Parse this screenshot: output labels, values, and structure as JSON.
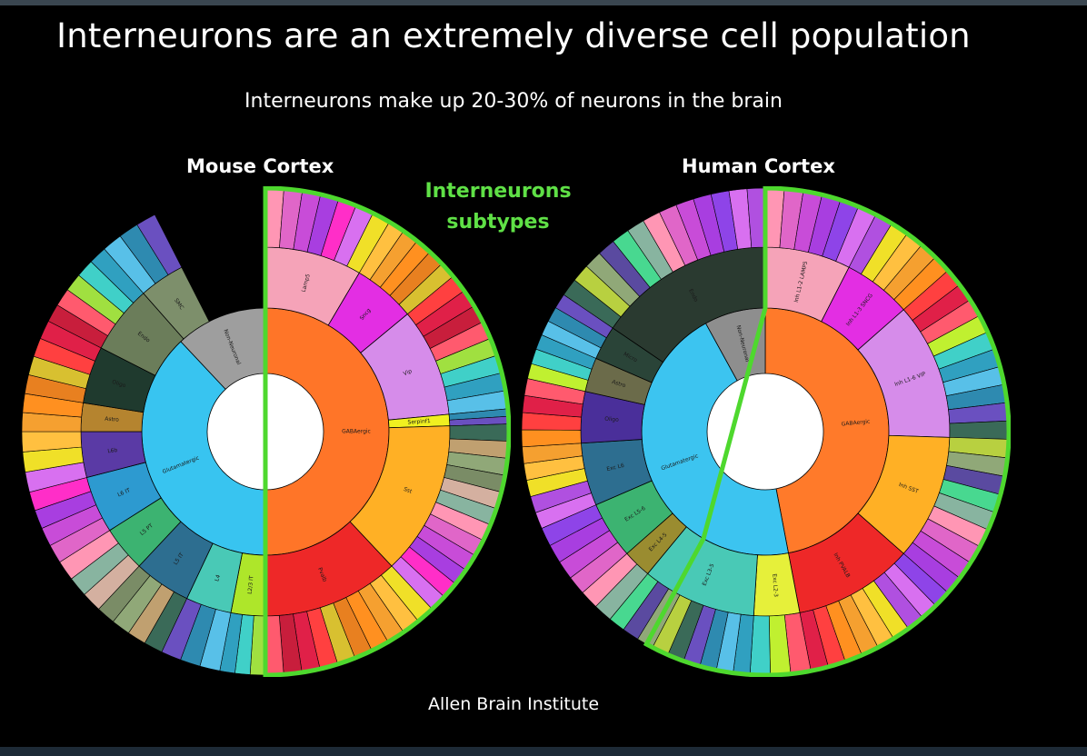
{
  "slide": {
    "title": "Interneurons are an extremely diverse cell population",
    "subtitle": "Interneurons make up 20-30% of neurons in the brain",
    "interneuron_label_line1": "Interneurons",
    "interneuron_label_line2": "subtypes",
    "credit": "Allen Brain Institute"
  },
  "colors": {
    "background": "#000000",
    "highlight_outline": "#4ed82e",
    "interneuron_label": "#5fe046"
  },
  "charts": [
    {
      "label": "Mouse Cortex",
      "rings": [
        [
          {
            "span": 50,
            "color": "#ff7528",
            "label": "GABAergic"
          },
          {
            "span": 38,
            "color": "#38c4f0",
            "label": "Glutamatergic"
          },
          {
            "span": 12,
            "color": "#9e9e9e",
            "label": "Non-Neuronal"
          }
        ],
        [
          {
            "span": 8.5,
            "color": "#f5a3b8",
            "label": "Lamp5"
          },
          {
            "span": 5.5,
            "color": "#e32ee3",
            "label": "Sncg"
          },
          {
            "span": 9.5,
            "color": "#d68cea",
            "label": "Vip"
          },
          {
            "span": 1.0,
            "color": "#f0f020",
            "label": "Serpinf1"
          },
          {
            "span": 13.5,
            "color": "#ffb025",
            "label": "Sst"
          },
          {
            "span": 12.0,
            "color": "#ee2828",
            "label": "Pvalb"
          },
          {
            "span": 3.0,
            "color": "#aee62a",
            "label": "L2/3 IT"
          },
          {
            "span": 4.0,
            "color": "#49c9b6",
            "label": "L4"
          },
          {
            "span": 5.0,
            "color": "#2d6e90",
            "label": "L5 IT"
          },
          {
            "span": 4.0,
            "color": "#3cb371",
            "label": "L5 PT"
          },
          {
            "span": 5.0,
            "color": "#2d9ad0",
            "label": "L6 IT"
          },
          {
            "span": 4.0,
            "color": "#5a3aa5",
            "label": "L6b"
          },
          {
            "span": 2.5,
            "color": "#b5842f",
            "label": "Astro"
          },
          {
            "span": 5.0,
            "color": "#1f3a2e",
            "label": "Oligo"
          },
          {
            "span": 6.0,
            "color": "#6b7d5a",
            "label": "Endo"
          },
          {
            "span": 4.0,
            "color": "#7d8f6b",
            "label": "SMC"
          }
        ]
      ],
      "leaf_colors": [
        "#ff96b4",
        "#e066c8",
        "#c84cd8",
        "#a83ee0",
        "#ff2ec8",
        "#d870f0",
        "#f0e028",
        "#ffc040",
        "#f5a030",
        "#ff9020",
        "#e88020",
        "#d8c030",
        "#ff4040",
        "#e02048",
        "#c81e3c",
        "#ff5a6e",
        "#a0e040",
        "#40d0c8",
        "#30a0c0",
        "#58c0e8",
        "#2e8ab0",
        "#6a50c0",
        "#3a6a58",
        "#c0a070",
        "#90a878",
        "#7a8c66",
        "#d4b0a0",
        "#88b4a0"
      ]
    },
    {
      "label": "Human Cortex",
      "rings": [
        [
          {
            "span": 47,
            "color": "#ff7a2a",
            "label": "GABAergic"
          },
          {
            "span": 45,
            "color": "#3cc4f0",
            "label": "Glutamatergic"
          },
          {
            "span": 8,
            "color": "#8e8e8e",
            "label": "Non-Neuronal"
          }
        ],
        [
          {
            "span": 7.5,
            "color": "#f5a3b8",
            "label": "Inh L1-2 LAMP5"
          },
          {
            "span": 6.0,
            "color": "#e32ee3",
            "label": "Inh L1-3 SNCG"
          },
          {
            "span": 12.0,
            "color": "#d68cea",
            "label": "Inh L1-6 VIP"
          },
          {
            "span": 11.0,
            "color": "#ffb025",
            "label": "Inh SST"
          },
          {
            "span": 10.5,
            "color": "#ee2828",
            "label": "Inh PVALB"
          },
          {
            "span": 4.0,
            "color": "#e6f03a",
            "label": "Exc L2-3"
          },
          {
            "span": 10.0,
            "color": "#49c9b6",
            "label": "Exc L3-5"
          },
          {
            "span": 2.5,
            "color": "#9a8c30",
            "label": "Exc L4-5"
          },
          {
            "span": 5.0,
            "color": "#3cb371",
            "label": "Exc L5-6"
          },
          {
            "span": 5.5,
            "color": "#2d6e90",
            "label": "Exc L6"
          },
          {
            "span": 4.5,
            "color": "#4a2f9a",
            "label": "Oligo"
          },
          {
            "span": 3.0,
            "color": "#6b6b4a",
            "label": "Astro"
          },
          {
            "span": 3.0,
            "color": "#2a4438",
            "label": "Micro"
          },
          {
            "span": 15.5,
            "color": "#2a3a30",
            "label": "Endo"
          }
        ]
      ],
      "leaf_colors": [
        "#ff96b4",
        "#e066c8",
        "#c84cd8",
        "#a83ee0",
        "#8e44e8",
        "#d870f0",
        "#b050e0",
        "#f0e028",
        "#ffc040",
        "#f5a030",
        "#ff9020",
        "#ff4040",
        "#e02048",
        "#ff5a6e",
        "#c0f030",
        "#40d0c8",
        "#30a0c0",
        "#58c0e8",
        "#2e8ab0",
        "#6a50c0",
        "#3a6a58",
        "#b8d040",
        "#90a878",
        "#5a4aa0",
        "#48d890",
        "#88b4a0"
      ]
    }
  ]
}
